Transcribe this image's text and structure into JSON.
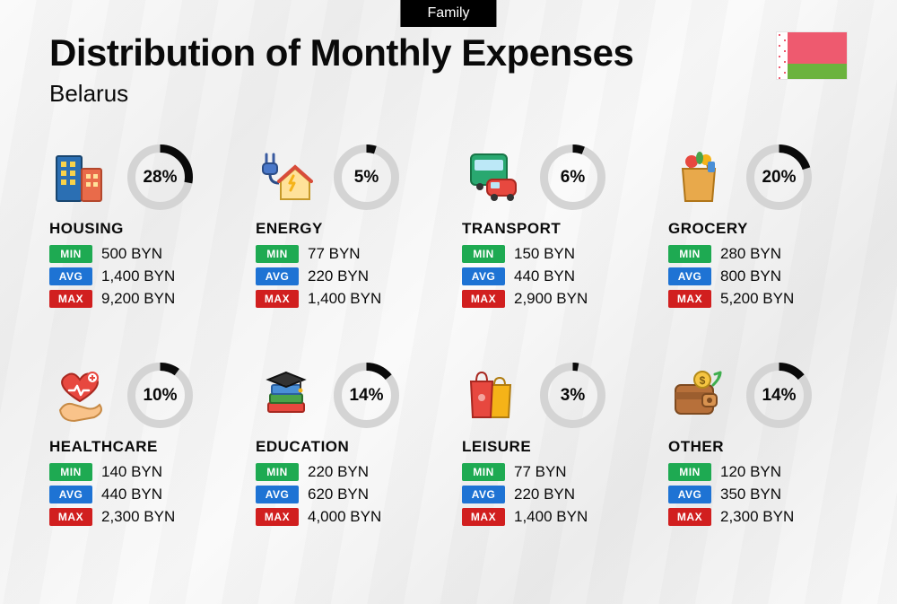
{
  "tag": "Family",
  "title": "Distribution of Monthly Expenses",
  "subtitle": "Belarus",
  "currency": "BYN",
  "colors": {
    "min": "#1eaa52",
    "avg": "#1e73d4",
    "max": "#d11f1f",
    "donut_fg": "#0a0a0a",
    "donut_bg": "#d4d4d4",
    "text": "#0a0a0a"
  },
  "labels": {
    "min": "MIN",
    "avg": "AVG",
    "max": "MAX"
  },
  "donut": {
    "size": 75,
    "stroke": 9
  },
  "categories": [
    {
      "key": "housing",
      "name": "HOUSING",
      "percent": 28,
      "min": "500",
      "avg": "1,400",
      "max": "9,200",
      "icon": "buildings"
    },
    {
      "key": "energy",
      "name": "ENERGY",
      "percent": 5,
      "min": "77",
      "avg": "220",
      "max": "1,400",
      "icon": "plug-house"
    },
    {
      "key": "transport",
      "name": "TRANSPORT",
      "percent": 6,
      "min": "150",
      "avg": "440",
      "max": "2,900",
      "icon": "bus-car"
    },
    {
      "key": "grocery",
      "name": "GROCERY",
      "percent": 20,
      "min": "280",
      "avg": "800",
      "max": "5,200",
      "icon": "grocery-bag"
    },
    {
      "key": "healthcare",
      "name": "HEALTHCARE",
      "percent": 10,
      "min": "140",
      "avg": "440",
      "max": "2,300",
      "icon": "heart-hand"
    },
    {
      "key": "education",
      "name": "EDUCATION",
      "percent": 14,
      "min": "220",
      "avg": "620",
      "max": "4,000",
      "icon": "grad-books"
    },
    {
      "key": "leisure",
      "name": "LEISURE",
      "percent": 3,
      "min": "77",
      "avg": "220",
      "max": "1,400",
      "icon": "shopping-bags"
    },
    {
      "key": "other",
      "name": "OTHER",
      "percent": 14,
      "min": "120",
      "avg": "350",
      "max": "2,300",
      "icon": "wallet-arrow"
    }
  ]
}
